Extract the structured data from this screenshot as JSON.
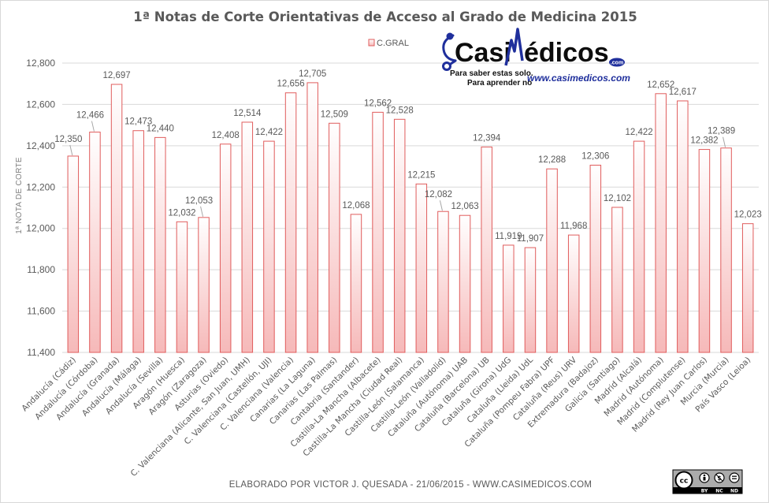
{
  "chart_data": {
    "type": "bar",
    "title": "1ª Notas de Corte Orientativas de Acceso al Grado de Medicina 2015",
    "ylabel": "1ª NOTA DE CORTE",
    "xlabel": "",
    "ylim": [
      11.4,
      12.8
    ],
    "yticks": [
      "11,400",
      "11,600",
      "11,800",
      "12,000",
      "12,200",
      "12,400",
      "12,600",
      "12,800"
    ],
    "ytick_values": [
      11.4,
      11.6,
      11.8,
      12.0,
      12.2,
      12.4,
      12.6,
      12.8
    ],
    "grid": true,
    "legend_position": "top-center",
    "categories": [
      "Andalucía (Cádiz)",
      "Andalucía (Córdoba)",
      "Andalucía (Granada)",
      "Andalucía (Málaga)",
      "Andalucía (Sevilla)",
      "Aragón (Huesca)",
      "Aragón (Zaragoza)",
      "Asturias (Oviedo)",
      "C. Valenciana (Alicante, San Juan, UMH)",
      "C. Valenciana (Castellón, UJI)",
      "C. Valenciana (Valencia)",
      "Canarias (La Laguna)",
      "Canarias (Las Palmas)",
      "Cantabria (Santander)",
      "Castilla-La Mancha (Albacete)",
      "Castilla-La Mancha (Ciudad Real)",
      "Castilla-León (Salamanca)",
      "Castilla-León (Valladolid)",
      "Cataluña (Autónoma) UAB",
      "Cataluña (Barcelona) UB",
      "Cataluña (Girona) UdG",
      "Cataluña (Lleida) UdL",
      "Cataluña (Pompeu Fabra) UPF",
      "Cataluña (Reus) URV",
      "Extremadura (Badajoz)",
      "Galicia (Santiago)",
      "Madrid (Alcalá)",
      "Madrid (Autónoma)",
      "Madrid (Complutense)",
      "Madrid (Rey Juan Carlos)",
      "Murcia (Murcia)",
      "País Vasco (Leioa)"
    ],
    "series": [
      {
        "name": "C.GRAL",
        "values": [
          12.35,
          12.466,
          12.697,
          12.473,
          12.44,
          12.032,
          12.053,
          12.408,
          12.514,
          12.422,
          12.656,
          12.705,
          12.509,
          12.068,
          12.562,
          12.528,
          12.215,
          12.082,
          12.063,
          12.394,
          11.919,
          11.907,
          12.288,
          11.968,
          12.306,
          12.102,
          12.422,
          12.652,
          12.617,
          12.382,
          12.389,
          12.023
        ],
        "labels": [
          "12,350",
          "12,466",
          "12,697",
          "12,473",
          "12,440",
          "12,032",
          "12,053",
          "12,408",
          "12,514",
          "12,422",
          "12,656",
          "12,705",
          "12,509",
          "12,068",
          "12,562",
          "12,528",
          "12,215",
          "12,082",
          "12,063",
          "12,394",
          "11,919",
          "11,907",
          "12,288",
          "11,968",
          "12,306",
          "12,102",
          "12,422",
          "12,652",
          "12,617",
          "12,382",
          "12,389",
          "12,023"
        ],
        "color": "#e05c5c"
      }
    ]
  },
  "footer": "ELABORADO POR VICTOR J. QUESADA - 21/06/2015 - WWW.CASIMEDICOS.COM",
  "logo": {
    "brand_left": "Casi",
    "brand_right": "édicos",
    "com": ".com",
    "slogan_1": "Para saber estas solo.",
    "slogan_2": "Para aprender no",
    "url": "www.casimedicos.com"
  },
  "license": {
    "cc": "cc",
    "by": "BY",
    "nc": "NC",
    "nd": "ND"
  },
  "colors": {
    "bar_edge": "#e05c5c",
    "bar_top": "#ffffff",
    "bar_bottom": "#f6b9b9",
    "grid": "#d9d9d9",
    "logo_blue": "#1f2f9c"
  }
}
